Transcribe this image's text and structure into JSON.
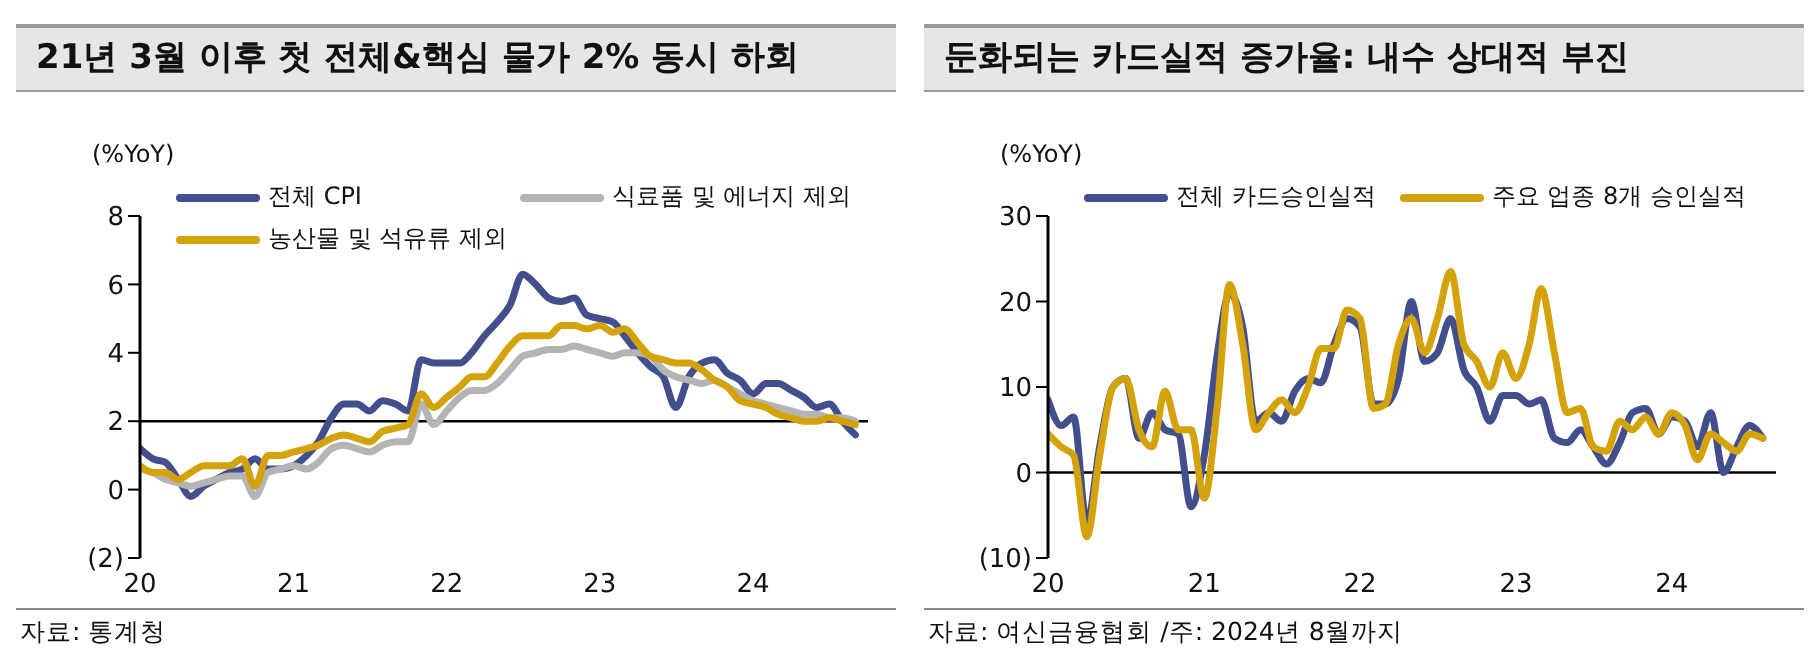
{
  "chart_data": [
    {
      "type": "line",
      "title": "21년 3월 이후 첫 전체&핵심 물가 2% 동시 하회",
      "ylabel": "(%YoY)",
      "x": [
        "2020-01",
        "2020-02",
        "2020-03",
        "2020-04",
        "2020-05",
        "2020-06",
        "2020-07",
        "2020-08",
        "2020-09",
        "2020-10",
        "2020-11",
        "2020-12",
        "2021-01",
        "2021-02",
        "2021-03",
        "2021-04",
        "2021-05",
        "2021-06",
        "2021-07",
        "2021-08",
        "2021-09",
        "2021-10",
        "2021-11",
        "2021-12",
        "2022-01",
        "2022-02",
        "2022-03",
        "2022-04",
        "2022-05",
        "2022-06",
        "2022-07",
        "2022-08",
        "2022-09",
        "2022-10",
        "2022-11",
        "2022-12",
        "2023-01",
        "2023-02",
        "2023-03",
        "2023-04",
        "2023-05",
        "2023-06",
        "2023-07",
        "2023-08",
        "2023-09",
        "2023-10",
        "2023-11",
        "2023-12",
        "2024-01",
        "2024-02",
        "2024-03",
        "2024-04",
        "2024-05",
        "2024-06",
        "2024-07",
        "2024-08",
        "2024-09"
      ],
      "series": [
        {
          "name": "전체 CPI",
          "color": "#434f8c",
          "values": [
            1.2,
            0.9,
            0.8,
            0.3,
            -0.2,
            0.1,
            0.3,
            0.5,
            0.6,
            0.9,
            0.6,
            0.6,
            0.7,
            1.0,
            1.4,
            2.1,
            2.5,
            2.5,
            2.3,
            2.6,
            2.5,
            2.3,
            3.8,
            3.7,
            3.7,
            3.7,
            4.0,
            4.5,
            4.9,
            5.4,
            6.3,
            6.0,
            5.6,
            5.5,
            5.6,
            5.1,
            5.0,
            4.9,
            4.5,
            4.0,
            3.6,
            3.3,
            2.4,
            3.3,
            3.7,
            3.8,
            3.4,
            3.2,
            2.8,
            3.1,
            3.1,
            2.9,
            2.7,
            2.4,
            2.5,
            2.0,
            1.6
          ]
        },
        {
          "name": "식료품 및 에너지 제외",
          "color": "#b4b4b4",
          "values": [
            0.6,
            0.5,
            0.3,
            0.2,
            0.1,
            0.2,
            0.3,
            0.4,
            0.4,
            -0.2,
            0.5,
            0.6,
            0.7,
            0.6,
            0.8,
            1.2,
            1.3,
            1.2,
            1.1,
            1.3,
            1.4,
            1.4,
            2.5,
            1.9,
            2.3,
            2.7,
            2.9,
            2.9,
            3.1,
            3.5,
            3.9,
            4.0,
            4.1,
            4.1,
            4.2,
            4.1,
            4.0,
            3.9,
            4.0,
            4.0,
            3.9,
            3.5,
            3.3,
            3.2,
            3.1,
            3.2,
            3.0,
            2.8,
            2.6,
            2.5,
            2.4,
            2.3,
            2.2,
            2.2,
            2.1,
            2.1,
            2.0
          ]
        },
        {
          "name": "농산물 및 석유류 제외",
          "color": "#d4a20a",
          "values": [
            0.7,
            0.5,
            0.5,
            0.3,
            0.5,
            0.7,
            0.7,
            0.7,
            0.9,
            0.1,
            1.0,
            1.0,
            1.1,
            1.2,
            1.3,
            1.5,
            1.6,
            1.5,
            1.4,
            1.7,
            1.8,
            1.9,
            2.8,
            2.4,
            2.7,
            3.0,
            3.3,
            3.3,
            3.7,
            4.2,
            4.5,
            4.5,
            4.5,
            4.8,
            4.8,
            4.7,
            4.8,
            4.6,
            4.7,
            4.3,
            3.9,
            3.8,
            3.7,
            3.7,
            3.5,
            3.2,
            3.0,
            2.6,
            2.5,
            2.4,
            2.2,
            2.1,
            2.0,
            2.0,
            2.1,
            2.0,
            1.9
          ]
        }
      ],
      "xlim": [
        "2020-01",
        "2024-10"
      ],
      "xticks": [
        {
          "value": "2020-01",
          "label": "20"
        },
        {
          "value": "2021-01",
          "label": "21"
        },
        {
          "value": "2022-01",
          "label": "22"
        },
        {
          "value": "2023-01",
          "label": "23"
        },
        {
          "value": "2024-01",
          "label": "24"
        }
      ],
      "ylim": [
        -2,
        8
      ],
      "yticks": [
        {
          "value": -2,
          "label": "(2)"
        },
        0,
        2,
        4,
        6,
        8
      ],
      "ref_lines": [
        {
          "axis": "y",
          "value": 2,
          "color": "#000000"
        }
      ],
      "legend": "top",
      "grid": false,
      "marker": "none",
      "line_style": "solid",
      "annotations": [
        "자료: 통계청"
      ]
    },
    {
      "type": "line",
      "title": "둔화되는 카드실적 증가율: 내수 상대적 부진",
      "ylabel": "(%YoY)",
      "x": [
        "2020-01",
        "2020-02",
        "2020-03",
        "2020-04",
        "2020-05",
        "2020-06",
        "2020-07",
        "2020-08",
        "2020-09",
        "2020-10",
        "2020-11",
        "2020-12",
        "2021-01",
        "2021-02",
        "2021-03",
        "2021-04",
        "2021-05",
        "2021-06",
        "2021-07",
        "2021-08",
        "2021-09",
        "2021-10",
        "2021-11",
        "2021-12",
        "2022-01",
        "2022-02",
        "2022-03",
        "2022-04",
        "2022-05",
        "2022-06",
        "2022-07",
        "2022-08",
        "2022-09",
        "2022-10",
        "2022-11",
        "2022-12",
        "2023-01",
        "2023-02",
        "2023-03",
        "2023-04",
        "2023-05",
        "2023-06",
        "2023-07",
        "2023-08",
        "2023-09",
        "2023-10",
        "2023-11",
        "2023-12",
        "2024-01",
        "2024-02",
        "2024-03",
        "2024-04",
        "2024-05",
        "2024-06",
        "2024-07",
        "2024-08"
      ],
      "series": [
        {
          "name": "전체 카드승인실적",
          "color": "#434f8c",
          "values": [
            8.5,
            5.5,
            6.5,
            -6,
            3,
            10,
            11,
            4,
            7,
            5,
            4.5,
            -4,
            2,
            14,
            21,
            17,
            6,
            7,
            6,
            9.5,
            11,
            10.5,
            15,
            18,
            17,
            8,
            8,
            11,
            20,
            13,
            14,
            18,
            12,
            10,
            6,
            9,
            9,
            8,
            8.5,
            4,
            3.5,
            5,
            3,
            1,
            3.5,
            7,
            7.5,
            4.5,
            6.5,
            6,
            3,
            7,
            0,
            3,
            5.5,
            4
          ]
        },
        {
          "name": "주요 업종 8개 승인실적",
          "color": "#d4a20a",
          "values": [
            4.5,
            3,
            2,
            -7.5,
            2,
            10,
            11,
            5,
            3,
            9.5,
            5,
            5,
            -3,
            8,
            22,
            15,
            5,
            7,
            8.5,
            7,
            10,
            14.5,
            14.5,
            19,
            18,
            7.5,
            8,
            15,
            18,
            14,
            18,
            23.5,
            15,
            13,
            10,
            14,
            11,
            15,
            21.5,
            14,
            7,
            7.5,
            3,
            2.5,
            6,
            5,
            6.5,
            4.5,
            7,
            5.5,
            1.5,
            4.5,
            3.5,
            2.5,
            4.5,
            4
          ]
        }
      ],
      "xlim": [
        "2020-01",
        "2024-09"
      ],
      "xticks": [
        {
          "value": "2020-01",
          "label": "20"
        },
        {
          "value": "2021-01",
          "label": "21"
        },
        {
          "value": "2022-01",
          "label": "22"
        },
        {
          "value": "2023-01",
          "label": "23"
        },
        {
          "value": "2024-01",
          "label": "24"
        }
      ],
      "ylim": [
        -10,
        30
      ],
      "yticks": [
        {
          "value": -10,
          "label": "(10)"
        },
        0,
        10,
        20,
        30
      ],
      "ref_lines": [
        {
          "axis": "y",
          "value": 0,
          "color": "#000000"
        }
      ],
      "legend": "top",
      "grid": false,
      "marker": "none",
      "line_style": "solid",
      "annotations": [
        "자료: 여신금융협회 /주: 2024년 8월까지"
      ]
    }
  ]
}
